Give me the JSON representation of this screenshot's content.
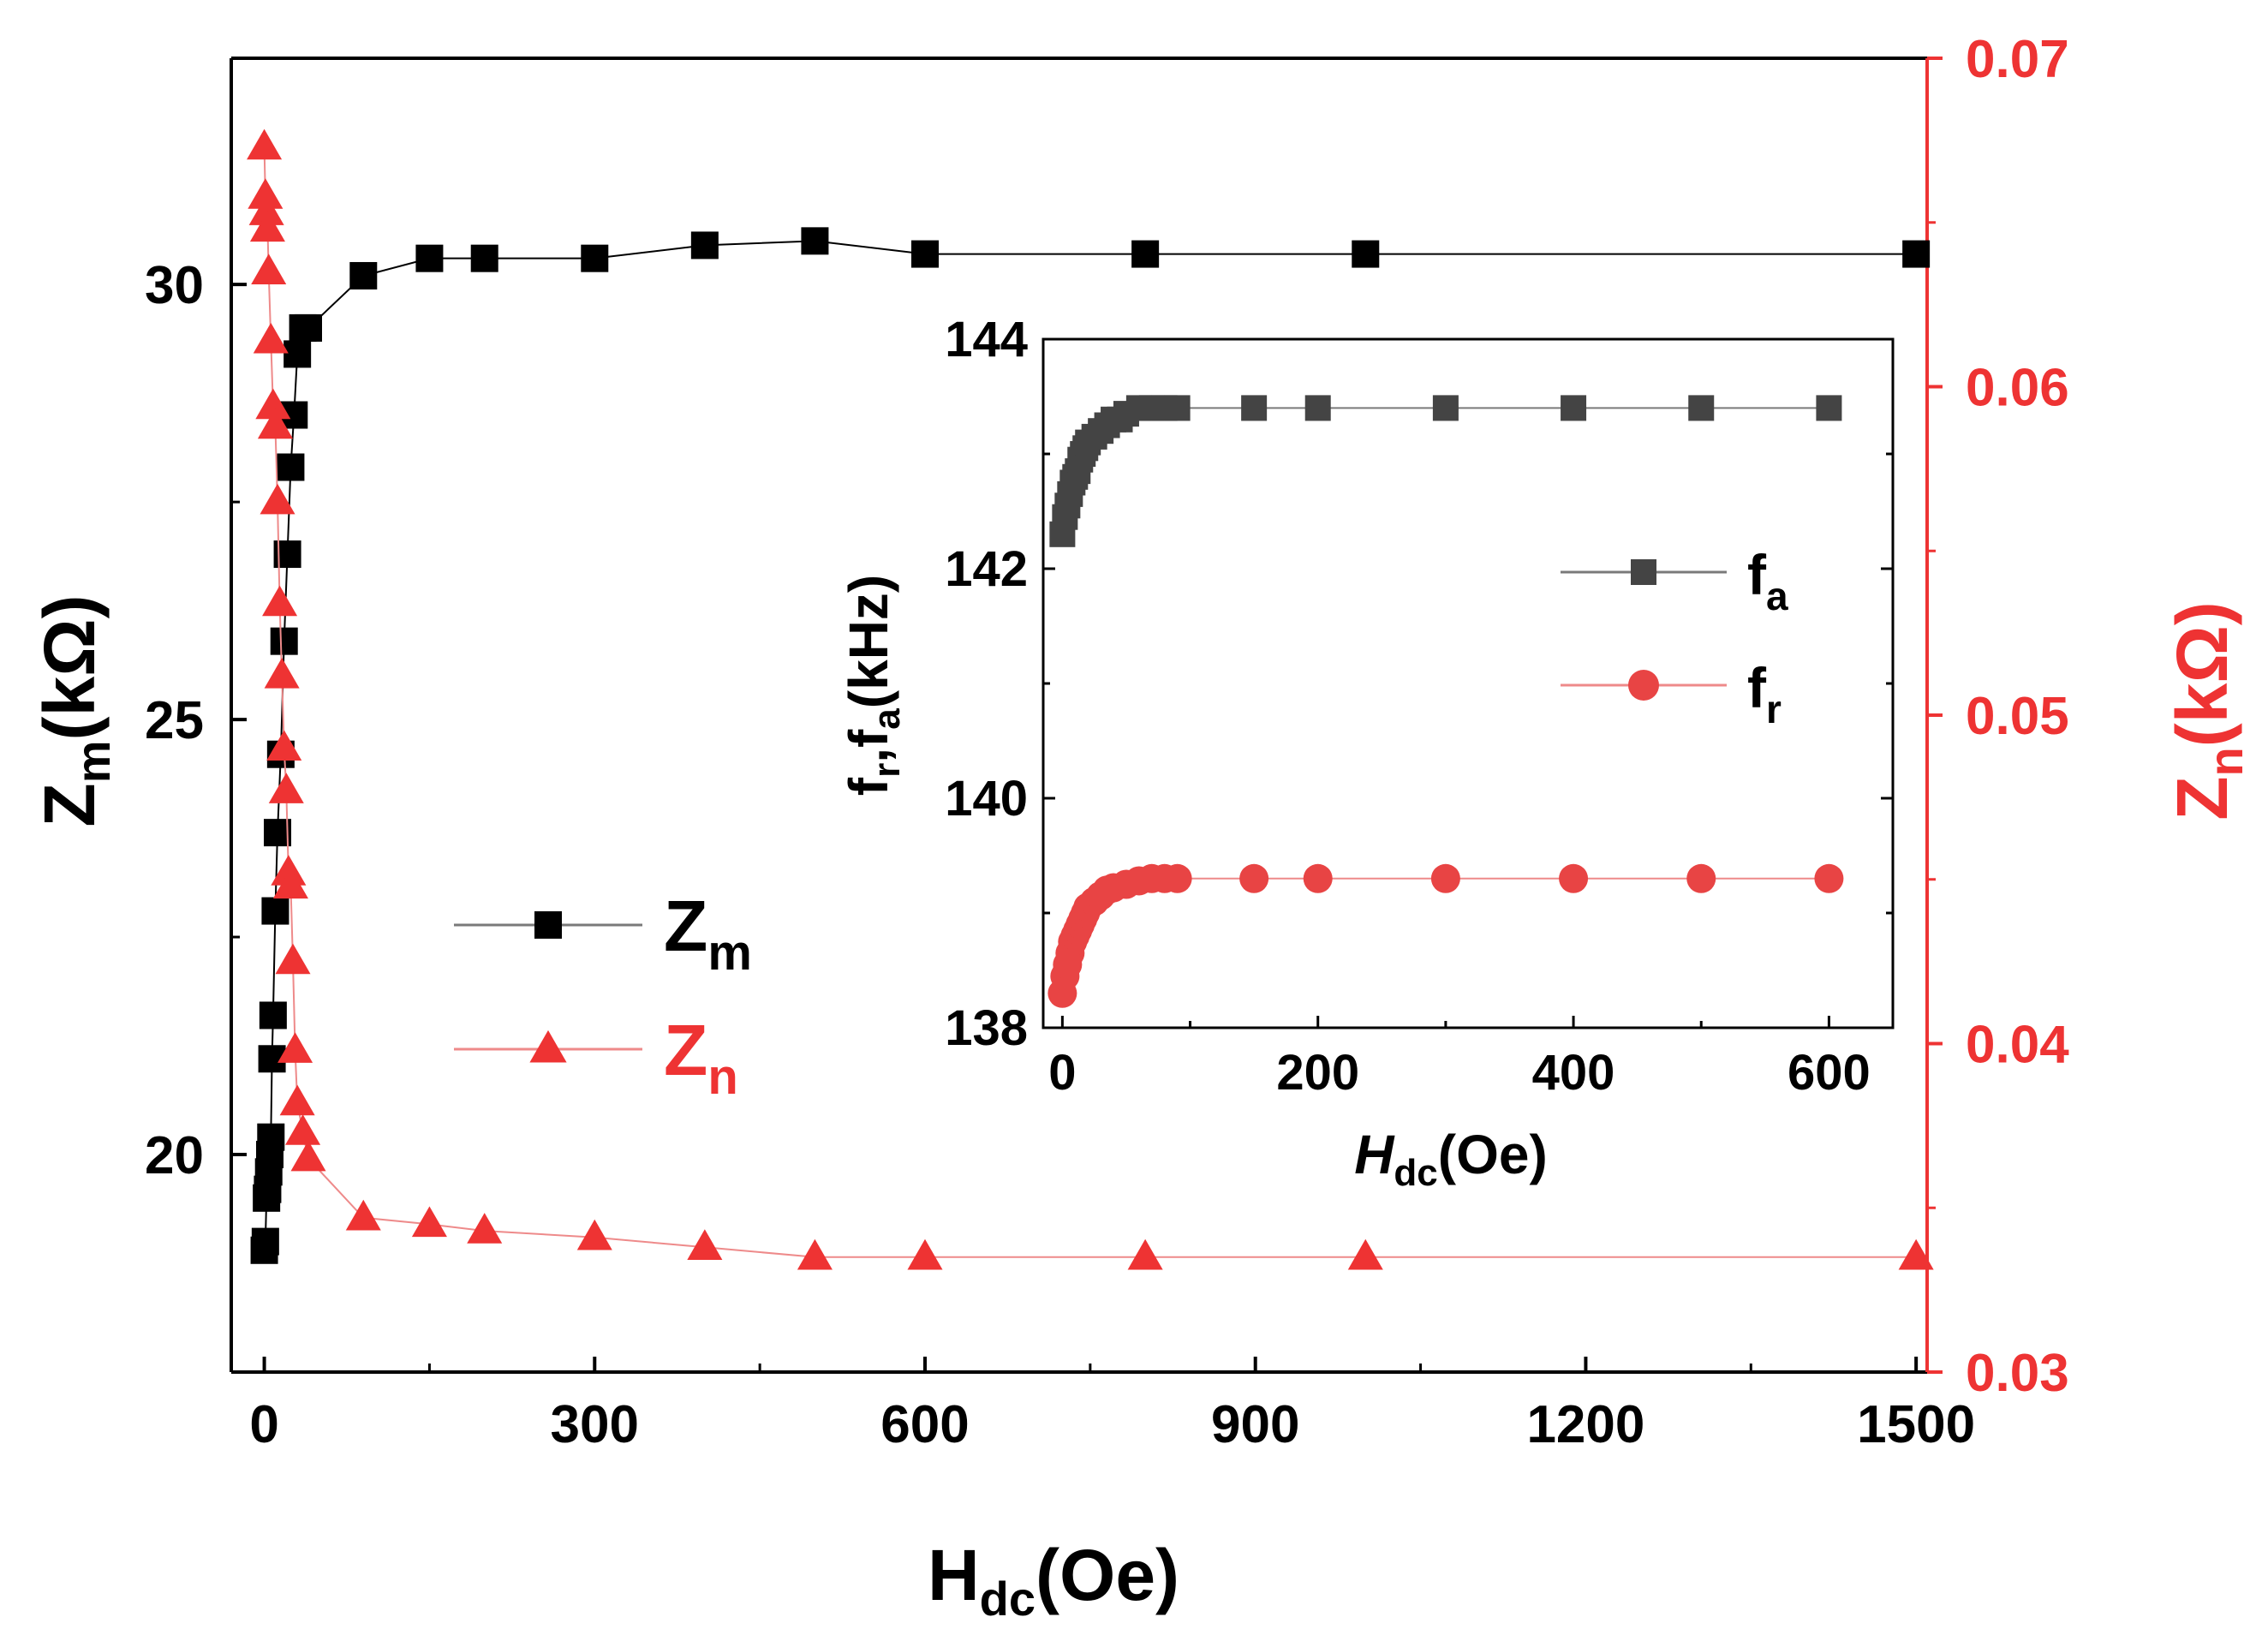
{
  "colors": {
    "main": "#000000",
    "red": "#ee3333",
    "inset_dark": "#444444",
    "inset_red": "#e84444",
    "line_gray": "#7a7a7a",
    "line_pink": "#ee8a8a"
  },
  "chart_data": [
    {
      "id": "main",
      "type": "line",
      "x_axis": {
        "label": "H",
        "label_sub": "dc",
        "label_suffix": "(Oe)",
        "range": [
          -30,
          1510
        ],
        "tick_values": [
          0,
          300,
          600,
          900,
          1200,
          1500
        ],
        "tick_labels": [
          "0",
          "300",
          "600",
          "900",
          "1200",
          "1500"
        ]
      },
      "y_left": {
        "label": "Z",
        "label_sub": "m",
        "label_suffix": "(kΩ)",
        "range": [
          17.5,
          32.6
        ],
        "tick_values": [
          20,
          25,
          30
        ],
        "tick_labels": [
          "20",
          "25",
          "30"
        ]
      },
      "y_right": {
        "label": "Z",
        "label_sub": "n",
        "label_suffix": "(kΩ)",
        "range": [
          0.03,
          0.07
        ],
        "tick_values": [
          0.03,
          0.04,
          0.05,
          0.06,
          0.07
        ],
        "tick_labels": [
          "0.03",
          "0.04",
          "0.05",
          "0.06",
          "0.07"
        ]
      },
      "legend": {
        "placement": "center-left",
        "entries": [
          {
            "name": "Z",
            "sub": "m"
          },
          {
            "name": "Z",
            "sub": "n"
          }
        ]
      },
      "series": [
        {
          "name": "Zm",
          "axis": "left",
          "marker": "square",
          "x": [
            0,
            1,
            2,
            3,
            4,
            5,
            6,
            7,
            8,
            10,
            12,
            15,
            18,
            21,
            24,
            27,
            30,
            35,
            40,
            90,
            150,
            200,
            300,
            400,
            500,
            600,
            800,
            1000,
            1500
          ],
          "y": [
            18.9,
            19.0,
            19.5,
            19.6,
            19.8,
            20.0,
            20.2,
            21.1,
            21.6,
            22.8,
            23.7,
            24.6,
            25.9,
            26.9,
            27.9,
            28.5,
            29.2,
            29.5,
            29.5,
            30.1,
            30.3,
            30.3,
            30.3,
            30.45,
            30.5,
            30.35,
            30.35,
            30.35,
            30.35
          ]
        },
        {
          "name": "Zn",
          "axis": "right",
          "marker": "triangle",
          "x": [
            0,
            1,
            2,
            3,
            4,
            6,
            8,
            10,
            12,
            14,
            16,
            18,
            20,
            22,
            24,
            26,
            28,
            30,
            35,
            40,
            90,
            150,
            200,
            300,
            400,
            500,
            600,
            800,
            1000,
            1500
          ],
          "y": [
            0.0673,
            0.0658,
            0.0653,
            0.0648,
            0.0635,
            0.0614,
            0.0594,
            0.0588,
            0.0565,
            0.0534,
            0.0512,
            0.049,
            0.0477,
            0.0452,
            0.0448,
            0.0425,
            0.0398,
            0.0382,
            0.0373,
            0.0365,
            0.0347,
            0.0345,
            0.0343,
            0.0341,
            0.0338,
            0.0335,
            0.0335,
            0.0335,
            0.0335,
            0.0335
          ]
        }
      ]
    },
    {
      "id": "inset",
      "type": "line",
      "x_axis": {
        "label": "H",
        "label_sub": "dc",
        "label_suffix": "(Oe)",
        "range": [
          -15,
          650
        ],
        "tick_values": [
          0,
          200,
          400,
          600
        ],
        "tick_labels": [
          "0",
          "200",
          "400",
          "600"
        ]
      },
      "y_axis": {
        "label_parts": [
          "f",
          "r",
          ",f",
          "a",
          "(kHz)"
        ],
        "range": [
          138,
          144
        ],
        "tick_values": [
          138,
          140,
          142,
          144
        ],
        "tick_labels": [
          "138",
          "140",
          "142",
          "144"
        ]
      },
      "legend": {
        "placement": "right",
        "entries": [
          {
            "name": "f",
            "sub": "a"
          },
          {
            "name": "f",
            "sub": "r"
          }
        ]
      },
      "series": [
        {
          "name": "fa",
          "marker": "square",
          "x": [
            0,
            2,
            4,
            6,
            8,
            10,
            12,
            14,
            16,
            18,
            20,
            25,
            30,
            35,
            40,
            45,
            50,
            60,
            70,
            80,
            90,
            150,
            200,
            300,
            400,
            500,
            600
          ],
          "y": [
            142.3,
            142.45,
            142.55,
            142.65,
            142.75,
            142.8,
            142.85,
            142.95,
            143.0,
            143.05,
            143.1,
            143.15,
            143.2,
            143.25,
            143.3,
            143.3,
            143.35,
            143.4,
            143.4,
            143.4,
            143.4,
            143.4,
            143.4,
            143.4,
            143.4,
            143.4,
            143.4
          ]
        },
        {
          "name": "fr",
          "marker": "circle",
          "x": [
            0,
            2,
            4,
            6,
            8,
            10,
            12,
            14,
            16,
            18,
            20,
            25,
            30,
            35,
            40,
            50,
            60,
            70,
            80,
            90,
            150,
            200,
            300,
            400,
            500,
            600
          ],
          "y": [
            138.3,
            138.45,
            138.55,
            138.65,
            138.75,
            138.8,
            138.85,
            138.9,
            138.95,
            139.0,
            139.05,
            139.1,
            139.15,
            139.2,
            139.22,
            139.25,
            139.28,
            139.3,
            139.3,
            139.3,
            139.3,
            139.3,
            139.3,
            139.3,
            139.3,
            139.3
          ]
        }
      ]
    }
  ]
}
